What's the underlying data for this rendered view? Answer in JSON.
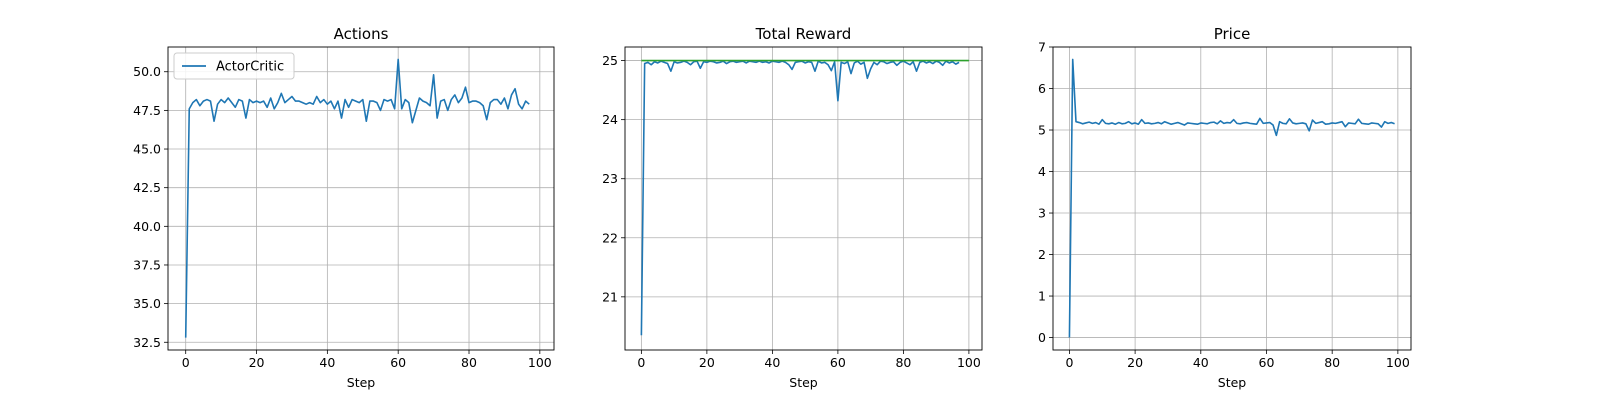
{
  "figure": {
    "background": "#ffffff",
    "grid": true
  },
  "chart_data": [
    {
      "type": "line",
      "title": "Actions",
      "xlabel": "Step",
      "ylabel": "",
      "xlim": [
        -5,
        104
      ],
      "ylim": [
        32.0,
        51.6
      ],
      "xticks": [
        0,
        20,
        40,
        60,
        80,
        100
      ],
      "yticks": [
        32.5,
        35.0,
        37.5,
        40.0,
        42.5,
        45.0,
        47.5,
        50.0
      ],
      "ytick_format": 1,
      "grid": true,
      "legend": {
        "position": "top-left",
        "entries": [
          "ActorCritic"
        ]
      },
      "series": [
        {
          "name": "ActorCritic",
          "color": "#1f77b4",
          "x_start": 0,
          "values": [
            32.8,
            47.6,
            48.0,
            48.2,
            47.8,
            48.1,
            48.2,
            48.1,
            46.8,
            47.9,
            48.2,
            48.0,
            48.3,
            48.0,
            47.7,
            48.2,
            48.1,
            47.0,
            48.2,
            48.0,
            48.1,
            48.0,
            48.1,
            47.7,
            48.3,
            47.6,
            48.0,
            48.6,
            48.0,
            48.2,
            48.4,
            48.1,
            48.1,
            48.0,
            47.9,
            48.0,
            47.9,
            48.4,
            48.0,
            48.2,
            47.9,
            48.1,
            47.6,
            48.1,
            47.0,
            48.2,
            47.7,
            48.2,
            48.1,
            48.0,
            48.2,
            46.8,
            48.1,
            48.1,
            48.0,
            47.5,
            48.2,
            48.1,
            48.2,
            47.6,
            50.8,
            47.6,
            48.2,
            48.0,
            46.7,
            47.5,
            48.3,
            48.1,
            48.0,
            47.8,
            49.8,
            47.0,
            48.1,
            48.2,
            47.5,
            48.2,
            48.5,
            48.0,
            48.3,
            49.0,
            48.0,
            48.1,
            48.1,
            48.0,
            47.8,
            46.9,
            48.0,
            48.2,
            48.2,
            47.9,
            48.3,
            47.6,
            48.5,
            48.9,
            47.9,
            47.6,
            48.1,
            47.9
          ]
        }
      ]
    },
    {
      "type": "line",
      "title": "Total Reward",
      "xlabel": "Step",
      "ylabel": "",
      "xlim": [
        -5,
        104
      ],
      "ylim": [
        20.1,
        25.23
      ],
      "xticks": [
        0,
        20,
        40,
        60,
        80,
        100
      ],
      "yticks": [
        21,
        22,
        23,
        24,
        25
      ],
      "ytick_format": 0,
      "grid": true,
      "series": [
        {
          "color": "#1f77b4",
          "x_start": 0,
          "values": [
            20.35,
            24.95,
            24.97,
            24.93,
            24.98,
            24.96,
            24.99,
            24.97,
            24.95,
            24.82,
            24.98,
            24.96,
            24.97,
            24.99,
            24.97,
            24.93,
            24.98,
            24.99,
            24.87,
            24.98,
            24.97,
            24.99,
            24.98,
            24.96,
            24.97,
            24.99,
            24.95,
            24.98,
            24.99,
            24.97,
            24.98,
            24.99,
            24.96,
            24.99,
            24.98,
            24.97,
            24.99,
            24.97,
            24.98,
            24.96,
            24.99,
            24.98,
            24.97,
            24.99,
            24.97,
            24.93,
            24.85,
            24.97,
            24.98,
            24.99,
            24.96,
            24.98,
            24.97,
            24.82,
            24.99,
            24.96,
            24.97,
            24.93,
            24.83,
            24.98,
            24.32,
            24.97,
            24.95,
            24.98,
            24.78,
            24.96,
            24.99,
            24.94,
            24.97,
            24.7,
            24.86,
            24.97,
            24.93,
            24.99,
            24.98,
            24.95,
            24.97,
            24.98,
            24.92,
            24.97,
            24.99,
            24.96,
            24.93,
            24.98,
            24.82,
            24.97,
            24.99,
            24.96,
            24.98,
            24.95,
            24.99,
            24.97,
            24.92,
            24.99,
            24.96,
            24.98,
            24.94,
            24.97
          ]
        },
        {
          "color": "#2ca02c",
          "x": [
            0,
            100
          ],
          "values": [
            25.0,
            25.0
          ]
        }
      ]
    },
    {
      "type": "line",
      "title": "Price",
      "xlabel": "Step",
      "ylabel": "",
      "xlim": [
        -5,
        104
      ],
      "ylim": [
        -0.3,
        7.0
      ],
      "xticks": [
        0,
        20,
        40,
        60,
        80,
        100
      ],
      "yticks": [
        0,
        1,
        2,
        3,
        4,
        5,
        6,
        7
      ],
      "ytick_format": 0,
      "grid": true,
      "series": [
        {
          "color": "#1f77b4",
          "x_start": 0,
          "values": [
            0.0,
            6.7,
            5.2,
            5.18,
            5.15,
            5.17,
            5.19,
            5.16,
            5.18,
            5.14,
            5.25,
            5.16,
            5.15,
            5.17,
            5.14,
            5.18,
            5.15,
            5.16,
            5.2,
            5.15,
            5.17,
            5.14,
            5.25,
            5.16,
            5.17,
            5.15,
            5.16,
            5.18,
            5.15,
            5.2,
            5.17,
            5.14,
            5.16,
            5.18,
            5.15,
            5.12,
            5.17,
            5.16,
            5.15,
            5.14,
            5.17,
            5.16,
            5.15,
            5.18,
            5.19,
            5.15,
            5.22,
            5.16,
            5.18,
            5.17,
            5.25,
            5.16,
            5.15,
            5.17,
            5.18,
            5.16,
            5.15,
            5.14,
            5.28,
            5.16,
            5.17,
            5.18,
            5.12,
            4.87,
            5.2,
            5.16,
            5.15,
            5.27,
            5.17,
            5.15,
            5.16,
            5.17,
            5.15,
            4.98,
            5.24,
            5.16,
            5.18,
            5.2,
            5.14,
            5.15,
            5.17,
            5.16,
            5.18,
            5.2,
            5.08,
            5.17,
            5.16,
            5.15,
            5.26,
            5.16,
            5.15,
            5.14,
            5.17,
            5.16,
            5.15,
            5.07,
            5.2,
            5.16,
            5.18,
            5.15
          ]
        }
      ]
    }
  ]
}
